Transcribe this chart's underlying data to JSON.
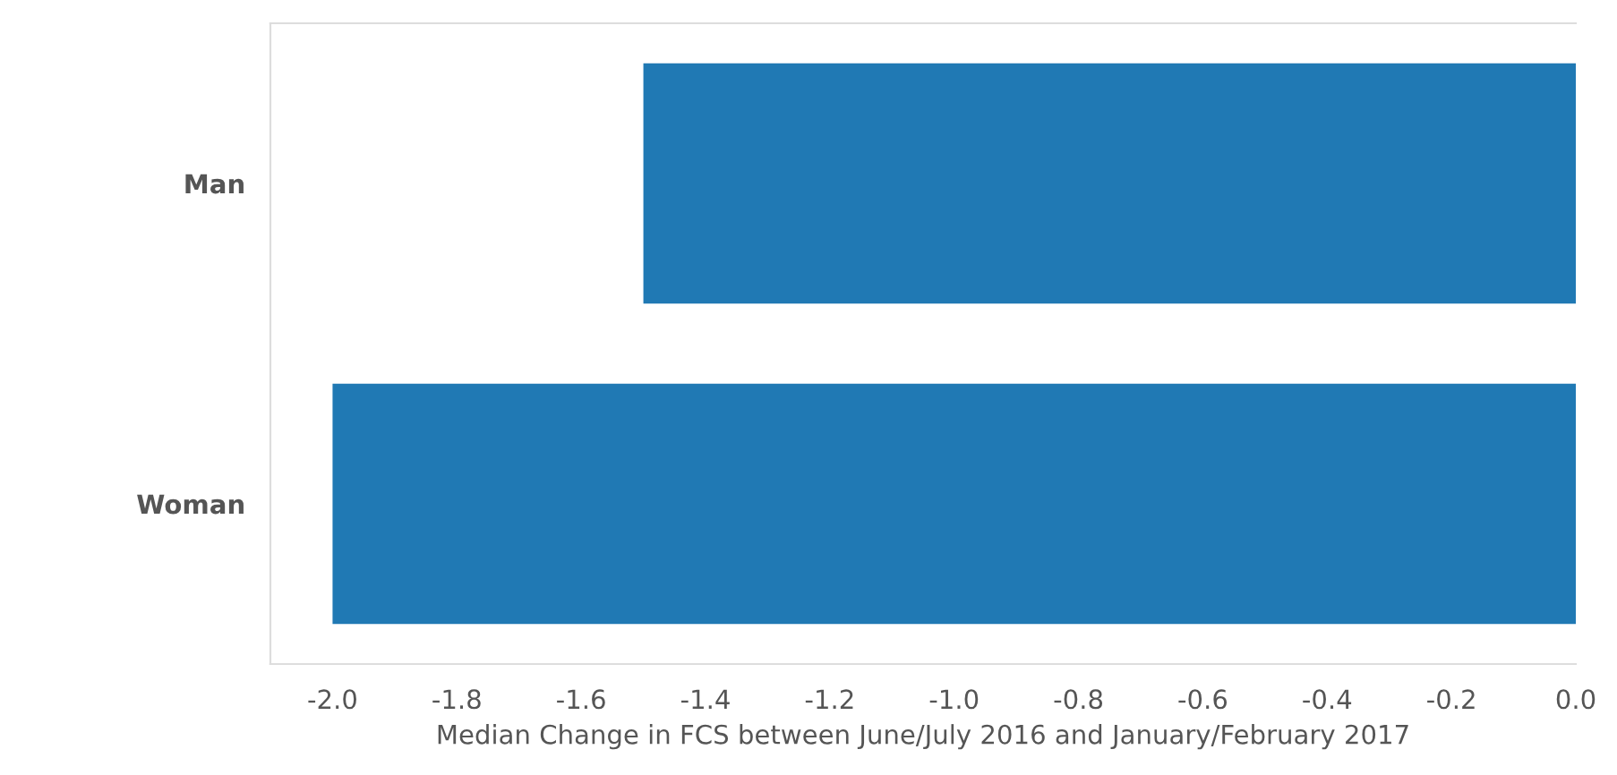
{
  "chart_data": {
    "type": "bar",
    "orientation": "horizontal",
    "categories": [
      "Man",
      "Woman"
    ],
    "values": [
      -1.5,
      -2.0
    ],
    "color": "#2079b4",
    "xlim": [
      -2.1,
      0.0
    ],
    "xticks": [
      {
        "value": -2.0,
        "label": "-2.0"
      },
      {
        "value": -1.8,
        "label": "-1.8"
      },
      {
        "value": -1.6,
        "label": "-1.6"
      },
      {
        "value": -1.4,
        "label": "-1.4"
      },
      {
        "value": -1.2,
        "label": "-1.2"
      },
      {
        "value": -1.0,
        "label": "-1.0"
      },
      {
        "value": -0.8,
        "label": "-0.8"
      },
      {
        "value": -0.6,
        "label": "-0.6"
      },
      {
        "value": -0.4,
        "label": "-0.4"
      },
      {
        "value": -0.2,
        "label": "-0.2"
      },
      {
        "value": 0.0,
        "label": "0.0"
      }
    ],
    "xlabel": "Median Change in FCS between June/July 2016 and January/February 2017",
    "grid": false,
    "legend": false
  }
}
